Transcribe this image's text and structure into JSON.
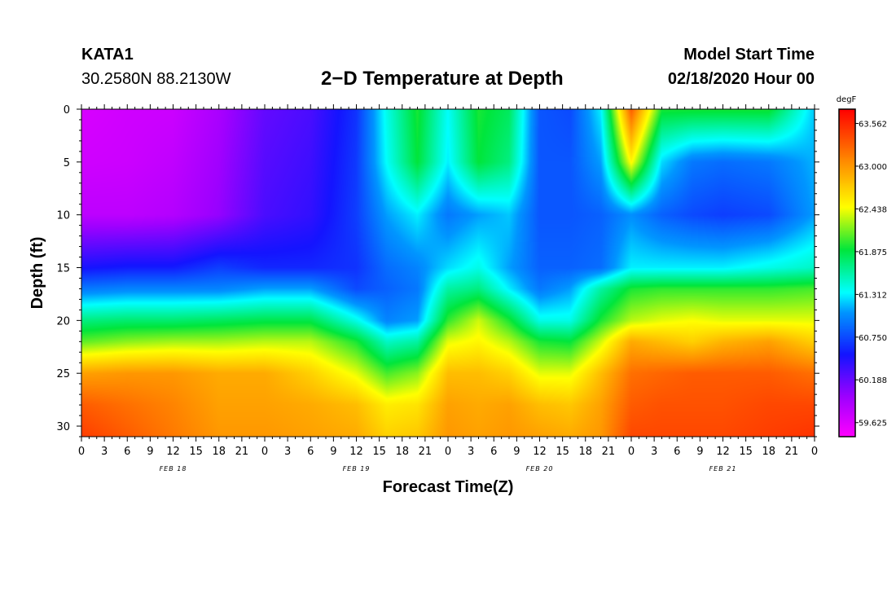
{
  "header": {
    "station": "KATA1",
    "coords": "30.2580N 88.2130W",
    "title": "2−D Temperature at Depth",
    "model_start_label": "Model Start Time",
    "model_start_value": "02/18/2020 Hour 00"
  },
  "chart_data": {
    "type": "heatmap",
    "title": "2−D Temperature at Depth",
    "xlabel": "Forecast Time(Z)",
    "ylabel": "Depth (ft)",
    "x_hours_range": [
      0,
      96
    ],
    "x_tick_labels": [
      "0",
      "3",
      "6",
      "9",
      "12",
      "15",
      "18",
      "21",
      "0",
      "3",
      "6",
      "9",
      "12",
      "15",
      "18",
      "21",
      "0",
      "3",
      "6",
      "9",
      "12",
      "15",
      "18",
      "21",
      "0",
      "3",
      "6",
      "9",
      "12",
      "15",
      "18",
      "21",
      "0"
    ],
    "day_labels": [
      {
        "label": "FEB 18",
        "hour": 12
      },
      {
        "label": "FEB 19",
        "hour": 36
      },
      {
        "label": "FEB 20",
        "hour": 60
      },
      {
        "label": "FEB 21",
        "hour": 84
      }
    ],
    "y_range_ft": [
      0,
      31
    ],
    "y_ticks": [
      0,
      5,
      10,
      15,
      20,
      25,
      30
    ],
    "colorbar": {
      "unit": "degF",
      "min": 59.44,
      "max": 63.75,
      "labels": [
        "63.562",
        "63.000",
        "62.438",
        "61.875",
        "61.312",
        "60.750",
        "60.188",
        "59.625"
      ]
    },
    "hours": [
      0,
      6,
      12,
      18,
      24,
      30,
      36,
      40,
      44,
      48,
      52,
      56,
      60,
      64,
      68,
      72,
      76,
      80,
      84,
      90,
      96
    ],
    "depths_ft": [
      0,
      5,
      10,
      15,
      17,
      20,
      22,
      25,
      28,
      31
    ],
    "values_degF": [
      [
        59.65,
        59.7,
        59.72,
        59.9,
        60.2,
        60.3,
        60.65,
        61.4,
        61.95,
        61.35,
        61.95,
        61.8,
        60.8,
        60.75,
        61.3,
        63.3,
        61.95,
        61.95,
        61.95,
        61.95,
        61.2
      ],
      [
        59.7,
        59.72,
        59.78,
        59.95,
        60.25,
        60.35,
        60.68,
        61.35,
        61.9,
        61.3,
        61.9,
        61.7,
        60.8,
        60.8,
        61.1,
        62.5,
        61.25,
        60.95,
        60.9,
        60.95,
        61.15
      ],
      [
        59.8,
        59.8,
        59.85,
        60.0,
        60.3,
        60.4,
        60.7,
        61.1,
        61.3,
        60.95,
        61.1,
        61.2,
        60.8,
        60.8,
        60.85,
        61.05,
        60.85,
        60.75,
        60.7,
        60.75,
        61.1
      ],
      [
        60.5,
        60.55,
        60.55,
        60.7,
        60.6,
        60.6,
        60.65,
        60.9,
        61.0,
        61.25,
        61.4,
        61.1,
        60.85,
        60.85,
        60.9,
        61.3,
        61.3,
        61.3,
        61.3,
        61.4,
        61.5
      ],
      [
        60.95,
        61.0,
        61.0,
        61.0,
        61.1,
        61.1,
        60.75,
        60.85,
        60.95,
        61.6,
        61.7,
        61.3,
        60.95,
        61.1,
        61.6,
        61.95,
        62.0,
        62.0,
        62.0,
        62.0,
        62.05
      ],
      [
        61.7,
        61.75,
        61.75,
        61.8,
        61.85,
        61.85,
        61.4,
        61.0,
        61.1,
        62.0,
        62.35,
        61.95,
        61.4,
        61.4,
        61.95,
        62.3,
        62.4,
        62.45,
        62.4,
        62.4,
        62.4
      ],
      [
        62.1,
        62.2,
        62.25,
        62.25,
        62.3,
        62.3,
        61.95,
        61.5,
        61.6,
        62.4,
        62.5,
        62.3,
        61.95,
        61.9,
        62.35,
        62.9,
        62.8,
        62.7,
        62.85,
        62.95,
        62.7
      ],
      [
        62.95,
        63.0,
        63.0,
        62.9,
        62.9,
        62.7,
        62.4,
        62.05,
        62.2,
        62.8,
        62.8,
        62.7,
        62.4,
        62.4,
        62.8,
        63.2,
        63.25,
        63.3,
        63.3,
        63.3,
        63.2
      ],
      [
        63.3,
        63.2,
        63.1,
        62.95,
        62.95,
        62.9,
        62.8,
        62.55,
        62.6,
        62.95,
        62.9,
        62.95,
        62.8,
        62.75,
        62.95,
        63.3,
        63.35,
        63.35,
        63.35,
        63.4,
        63.4
      ],
      [
        63.45,
        63.3,
        63.15,
        63.0,
        63.0,
        62.95,
        62.9,
        62.7,
        62.75,
        63.0,
        62.95,
        63.0,
        62.95,
        62.9,
        63.0,
        63.4,
        63.4,
        63.4,
        63.4,
        63.45,
        63.5
      ]
    ]
  }
}
